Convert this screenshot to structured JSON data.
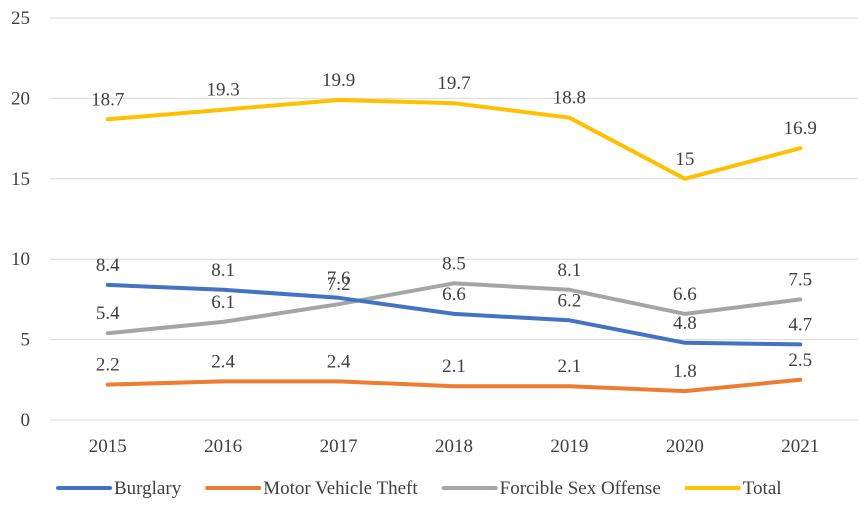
{
  "chart_data": {
    "type": "line",
    "title": "",
    "xlabel": "",
    "ylabel": "",
    "x": [
      "2015",
      "2016",
      "2017",
      "2018",
      "2019",
      "2020",
      "2021"
    ],
    "ylim": [
      0,
      25
    ],
    "yticks": [
      "0",
      "5",
      "10",
      "15",
      "20",
      "25"
    ],
    "grid": true,
    "legend_position": "bottom",
    "series": [
      {
        "name": "Burglary",
        "color": "#4472C4",
        "values": [
          8.4,
          8.1,
          7.6,
          6.6,
          6.2,
          4.8,
          4.7
        ],
        "labels": [
          "8.4",
          "8.1",
          "7.6",
          "6.6",
          "6.2",
          "4.8",
          "4.7"
        ]
      },
      {
        "name": "Motor Vehicle Theft",
        "color": "#ED7D31",
        "values": [
          2.2,
          2.4,
          2.4,
          2.1,
          2.1,
          1.8,
          2.5
        ],
        "labels": [
          "2.2",
          "2.4",
          "2.4",
          "2.1",
          "2.1",
          "1.8",
          "2.5"
        ]
      },
      {
        "name": "Forcible Sex Offense",
        "color": "#A5A5A5",
        "values": [
          5.4,
          6.1,
          7.2,
          8.5,
          8.1,
          6.6,
          7.5
        ],
        "labels": [
          "5.4",
          "6.1",
          "7.2",
          "8.5",
          "8.1",
          "6.6",
          "7.5"
        ]
      },
      {
        "name": "Total",
        "color": "#FFC000",
        "values": [
          18.7,
          19.3,
          19.9,
          19.7,
          18.8,
          15,
          16.9
        ],
        "labels": [
          "18.7",
          "19.3",
          "19.9",
          "19.7",
          "18.8",
          "15",
          "16.9"
        ]
      }
    ]
  }
}
